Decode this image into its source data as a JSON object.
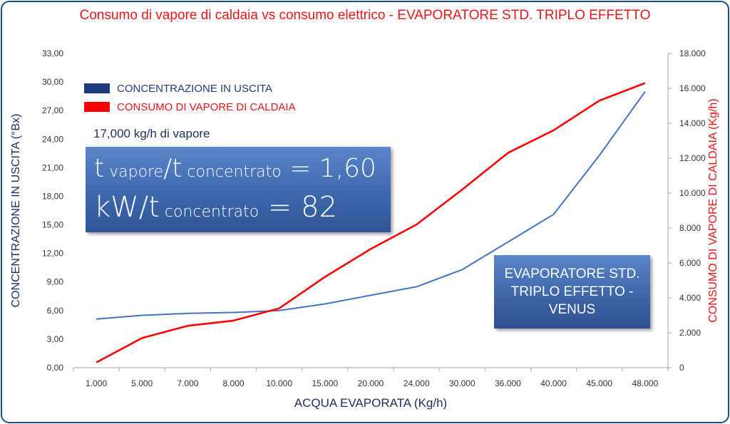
{
  "chart_data": {
    "type": "line",
    "title": "Consumo di vapore di caldaia vs consumo elettrico - EVAPORATORE STD. TRIPLO EFFETTO",
    "xlabel": "ACQUA EVAPORATA  (Kg/h)",
    "ylabel_left": "CONCENTRAZIONE IN USCITA (°Bx)",
    "ylabel_right": "CONSUMO DI VAPORE DI CALDAIA  (Kg/h)",
    "categories": [
      "1.000",
      "5.000",
      "7.000",
      "8.000",
      "10.000",
      "15.000",
      "20.000",
      "24.000",
      "30.000",
      "36.000",
      "40.000",
      "45.000",
      "48.000"
    ],
    "y_left_ticks": [
      "0,00",
      "3,00",
      "6,00",
      "9,00",
      "12,00",
      "15,00",
      "18,00",
      "21,00",
      "24,00",
      "27,00",
      "30,00",
      "33,00"
    ],
    "y_right_ticks": [
      "0",
      "2.000",
      "4.000",
      "6.000",
      "8.000",
      "10.000",
      "12.000",
      "14.000",
      "16.000",
      "18.000"
    ],
    "ylim_left": [
      0,
      33
    ],
    "ylim_right": [
      0,
      18000
    ],
    "grid": true,
    "legend_position": "top-left",
    "series": [
      {
        "name": "CONCENTRAZIONE IN USCITA",
        "axis": "left",
        "color": "#4472c4",
        "values": [
          5.1,
          5.5,
          5.7,
          5.8,
          6.0,
          6.7,
          7.6,
          8.5,
          10.3,
          13.2,
          16.1,
          22.3,
          29.0
        ]
      },
      {
        "name": "CONSUMO DI VAPORE DI CALDAIA",
        "axis": "right",
        "color": "#ff0000",
        "values": [
          300,
          1700,
          2400,
          2700,
          3400,
          5200,
          6800,
          8200,
          10200,
          12300,
          13600,
          15300,
          16300
        ]
      }
    ]
  },
  "legend": {
    "swatch_colors": [
      "#1f3a7a",
      "#ff0000"
    ],
    "text_colors": [
      "#1f3a7a",
      "#e8141c"
    ]
  },
  "annotations": {
    "note": "17,000 kg/h di vapore",
    "box1": {
      "line1_a": "t",
      "line1_b": " vapore",
      "line1_c": "/t",
      "line1_d": " concentrato",
      "line1_e": " = 1,60",
      "line2_a": "kW/t",
      "line2_b": " concentrato",
      "line2_c": " = 82"
    },
    "box2_lines": [
      "EVAPORATORE STD.",
      "TRIPLO EFFETTO -",
      "VENUS"
    ]
  },
  "colors": {
    "title": "#e8141c",
    "left_axis_label": "#1f2d5a",
    "right_axis_label": "#e8141c",
    "x_axis_label": "#1f2d5a",
    "frame": "#1f4e8c"
  }
}
